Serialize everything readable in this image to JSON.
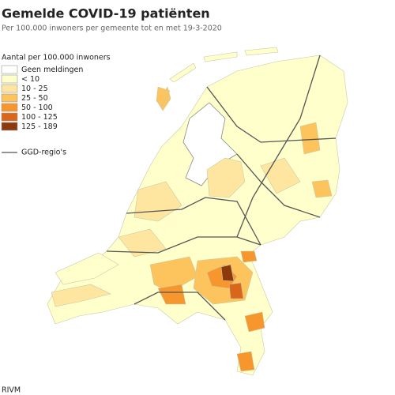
{
  "header": {
    "title": "Gemelde COVID-19 patiënten",
    "subtitle": "Per 100.000 inwoners per gemeente tot en met 19-3-2020"
  },
  "legend": {
    "title": "Aantal per 100.000 inwoners",
    "items": [
      {
        "label": "Geen meldingen",
        "color": "#ffffff"
      },
      {
        "label": "< 10",
        "color": "#ffffcc"
      },
      {
        "label": "10 - 25",
        "color": "#fee6a0"
      },
      {
        "label": "25 - 50",
        "color": "#fdc35c"
      },
      {
        "label": "50 - 100",
        "color": "#f7962c"
      },
      {
        "label": "100 - 125",
        "color": "#d9661a"
      },
      {
        "label": "125 - 189",
        "color": "#8c3a0b"
      }
    ],
    "line_label": "GGD-regio's"
  },
  "source": "RIVM"
}
